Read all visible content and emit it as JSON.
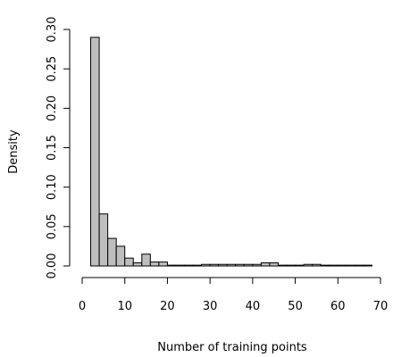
{
  "chart_data": {
    "type": "bar",
    "subtype": "histogram",
    "xlabel": "Number of training points",
    "ylabel": "Density",
    "xlim": [
      0,
      70
    ],
    "ylim": [
      0,
      0.3
    ],
    "x_ticks": [
      "0",
      "10",
      "20",
      "30",
      "40",
      "50",
      "60",
      "70"
    ],
    "y_ticks": [
      "0.00",
      "0.05",
      "0.10",
      "0.15",
      "0.20",
      "0.25",
      "0.30"
    ],
    "bin_width": 2,
    "bins": [
      {
        "start": 2,
        "end": 4,
        "density": 0.29
      },
      {
        "start": 4,
        "end": 6,
        "density": 0.066
      },
      {
        "start": 6,
        "end": 8,
        "density": 0.035
      },
      {
        "start": 8,
        "end": 10,
        "density": 0.025
      },
      {
        "start": 10,
        "end": 12,
        "density": 0.01
      },
      {
        "start": 12,
        "end": 14,
        "density": 0.004
      },
      {
        "start": 14,
        "end": 16,
        "density": 0.015
      },
      {
        "start": 16,
        "end": 18,
        "density": 0.005
      },
      {
        "start": 18,
        "end": 20,
        "density": 0.005
      },
      {
        "start": 20,
        "end": 22,
        "density": 0.001
      },
      {
        "start": 22,
        "end": 24,
        "density": 0.001
      },
      {
        "start": 24,
        "end": 26,
        "density": 0.001
      },
      {
        "start": 26,
        "end": 28,
        "density": 0.001
      },
      {
        "start": 28,
        "end": 30,
        "density": 0.002
      },
      {
        "start": 30,
        "end": 32,
        "density": 0.002
      },
      {
        "start": 32,
        "end": 34,
        "density": 0.002
      },
      {
        "start": 34,
        "end": 36,
        "density": 0.002
      },
      {
        "start": 36,
        "end": 38,
        "density": 0.002
      },
      {
        "start": 38,
        "end": 40,
        "density": 0.002
      },
      {
        "start": 40,
        "end": 42,
        "density": 0.002
      },
      {
        "start": 42,
        "end": 44,
        "density": 0.004
      },
      {
        "start": 44,
        "end": 46,
        "density": 0.004
      },
      {
        "start": 46,
        "end": 48,
        "density": 0.001
      },
      {
        "start": 48,
        "end": 50,
        "density": 0.001
      },
      {
        "start": 50,
        "end": 52,
        "density": 0.001
      },
      {
        "start": 52,
        "end": 54,
        "density": 0.002
      },
      {
        "start": 54,
        "end": 56,
        "density": 0.002
      },
      {
        "start": 56,
        "end": 58,
        "density": 0.001
      },
      {
        "start": 58,
        "end": 60,
        "density": 0.001
      },
      {
        "start": 60,
        "end": 62,
        "density": 0.001
      },
      {
        "start": 62,
        "end": 64,
        "density": 0.001
      },
      {
        "start": 64,
        "end": 66,
        "density": 0.001
      },
      {
        "start": 66,
        "end": 68,
        "density": 0.001
      }
    ],
    "grid": false,
    "legend": "none"
  }
}
